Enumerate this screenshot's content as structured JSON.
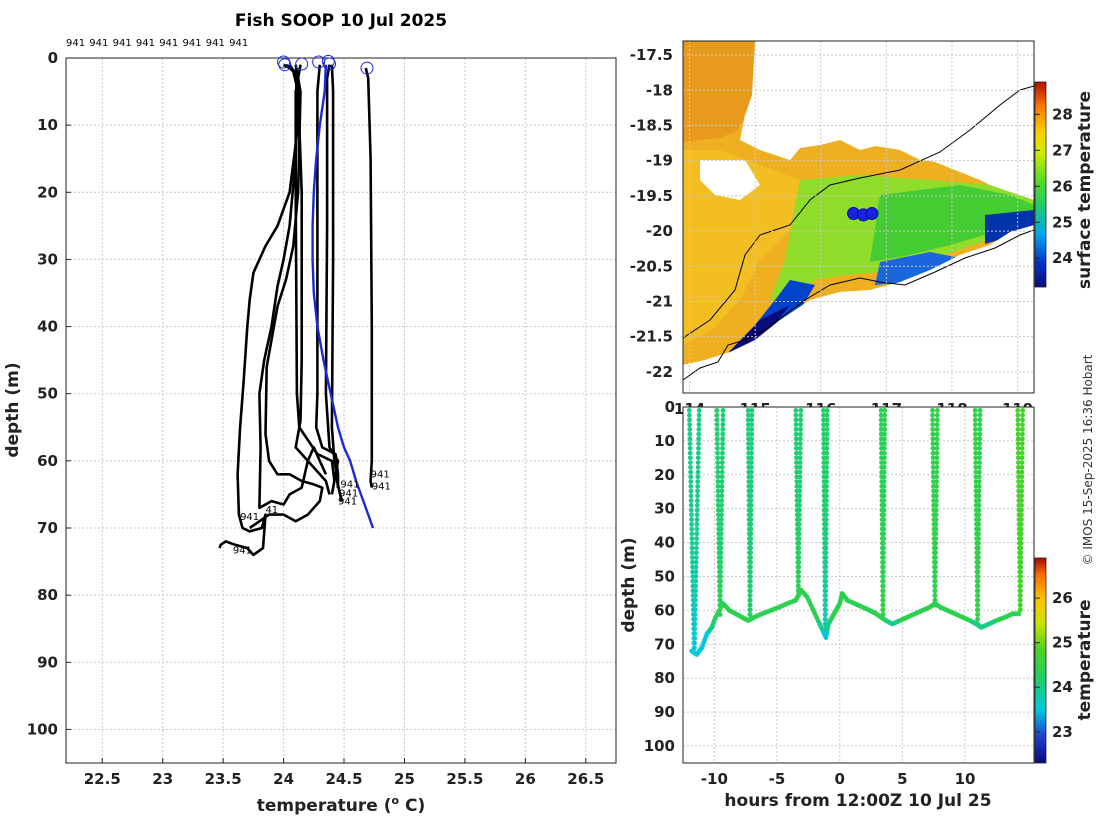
{
  "chart_data": [
    {
      "type": "line",
      "title": "Fish SOOP 10 Jul 2025",
      "xlabel": "temperature (",
      "xlabel_sup": "o",
      "xlabel_end": " C)",
      "ylabel": "depth (m)",
      "xlim": [
        22.2,
        26.75
      ],
      "ylim": [
        105,
        0
      ],
      "xticks": [
        "22.5",
        "23",
        "23.5",
        "24",
        "24.5",
        "25",
        "25.5",
        "26",
        "26.5"
      ],
      "yticks": [
        "0",
        "10",
        "20",
        "30",
        "40",
        "50",
        "60",
        "70",
        "80",
        "90",
        "100"
      ],
      "top_labels": [
        "941",
        "941",
        "941",
        "941",
        "941",
        "941",
        "941",
        "941"
      ],
      "profile_labels": [
        {
          "text": "941",
          "t": 24.72,
          "d": 62.5
        },
        {
          "text": "941",
          "t": 24.73,
          "d": 64.3
        },
        {
          "text": "941",
          "t": 24.47,
          "d": 64.0
        },
        {
          "text": "941",
          "t": 24.46,
          "d": 65.3
        },
        {
          "text": "941",
          "t": 24.45,
          "d": 66.5
        },
        {
          "text": "41",
          "t": 23.85,
          "d": 67.8
        },
        {
          "text": "941",
          "t": 23.64,
          "d": 68.8
        },
        {
          "text": "941",
          "t": 23.58,
          "d": 73.8
        }
      ],
      "start_markers": [
        {
          "t": 24.0,
          "d": 0.6
        },
        {
          "t": 24.01,
          "d": 1.0
        },
        {
          "t": 24.15,
          "d": 0.9
        },
        {
          "t": 24.29,
          "d": 0.6
        },
        {
          "t": 24.37,
          "d": 0.5
        },
        {
          "t": 24.38,
          "d": 0.9
        },
        {
          "t": 24.69,
          "d": 1.5
        }
      ],
      "series": [
        {
          "name": "profile-1",
          "color": "#000000",
          "points": [
            [
              24.02,
              1
            ],
            [
              24.08,
              2
            ],
            [
              24.12,
              5
            ],
            [
              24.15,
              20
            ],
            [
              24.15,
              45
            ],
            [
              24.14,
              54
            ],
            [
              24.1,
              58
            ],
            [
              24.2,
              60
            ],
            [
              24.35,
              63
            ],
            [
              24.38,
              65
            ]
          ]
        },
        {
          "name": "profile-2",
          "color": "#000000",
          "points": [
            [
              24.14,
              1
            ],
            [
              24.1,
              5
            ],
            [
              24.1,
              20
            ],
            [
              24.11,
              50
            ],
            [
              24.13,
              55
            ],
            [
              24.28,
              59
            ],
            [
              24.4,
              60
            ],
            [
              24.42,
              63
            ],
            [
              24.4,
              65
            ]
          ]
        },
        {
          "name": "profile-3",
          "color": "#000000",
          "points": [
            [
              24.3,
              1
            ],
            [
              24.28,
              5
            ],
            [
              24.28,
              30
            ],
            [
              24.28,
              50
            ],
            [
              24.27,
              55
            ],
            [
              24.32,
              58
            ],
            [
              24.43,
              59
            ],
            [
              24.45,
              62
            ],
            [
              24.45,
              64
            ]
          ]
        },
        {
          "name": "profile-4",
          "color": "#000000",
          "points": [
            [
              24.38,
              1
            ],
            [
              24.36,
              3
            ],
            [
              24.36,
              25
            ],
            [
              24.35,
              50
            ],
            [
              24.38,
              58
            ],
            [
              24.45,
              60
            ],
            [
              24.43,
              62
            ],
            [
              24.48,
              66
            ]
          ]
        },
        {
          "name": "profile-5",
          "color": "#000000",
          "points": [
            [
              24.4,
              1
            ],
            [
              24.41,
              5
            ],
            [
              24.41,
              30
            ],
            [
              24.4,
              55
            ],
            [
              24.42,
              60
            ],
            [
              24.44,
              62
            ],
            [
              24.45,
              64
            ]
          ]
        },
        {
          "name": "profile-6",
          "color": "#000000",
          "points": [
            [
              24.68,
              1.5
            ],
            [
              24.7,
              3
            ],
            [
              24.72,
              15
            ],
            [
              24.73,
              40
            ],
            [
              24.73,
              60
            ],
            [
              24.72,
              63
            ],
            [
              24.73,
              64
            ]
          ]
        },
        {
          "name": "profile-7",
          "color": "#000000",
          "points": [
            [
              24.0,
              1
            ],
            [
              24.1,
              2
            ],
            [
              24.12,
              10
            ],
            [
              24.05,
              20
            ],
            [
              23.95,
              25
            ],
            [
              23.85,
              28
            ],
            [
              23.75,
              32
            ],
            [
              23.72,
              36
            ],
            [
              23.7,
              40
            ],
            [
              23.67,
              48
            ],
            [
              23.64,
              55
            ],
            [
              23.62,
              62
            ],
            [
              23.63,
              68
            ],
            [
              23.66,
              70
            ],
            [
              23.72,
              70.5
            ],
            [
              23.82,
              70
            ],
            [
              23.85,
              68
            ],
            [
              23.83,
              73
            ],
            [
              23.75,
              74
            ],
            [
              23.7,
              73
            ],
            [
              23.6,
              72.5
            ],
            [
              23.52,
              72
            ],
            [
              23.48,
              72.5
            ],
            [
              23.47,
              73
            ]
          ]
        },
        {
          "name": "profile-8",
          "color": "#000000",
          "points": [
            [
              24.05,
              1
            ],
            [
              24.12,
              3
            ],
            [
              24.1,
              15
            ],
            [
              24.05,
              25
            ],
            [
              24.0,
              30
            ],
            [
              23.95,
              34
            ],
            [
              23.9,
              40
            ],
            [
              23.84,
              45
            ],
            [
              23.8,
              50
            ],
            [
              23.81,
              58
            ],
            [
              23.8,
              67
            ],
            [
              23.9,
              66
            ],
            [
              24.0,
              66.5
            ],
            [
              24.05,
              65
            ],
            [
              24.15,
              64
            ],
            [
              24.2,
              60
            ],
            [
              24.25,
              58
            ],
            [
              24.3,
              60
            ],
            [
              24.35,
              62
            ]
          ]
        },
        {
          "name": "profile-9",
          "color": "#000000",
          "points": [
            [
              24.1,
              1
            ],
            [
              24.14,
              5
            ],
            [
              24.12,
              20
            ],
            [
              24.08,
              28
            ],
            [
              24.02,
              33
            ],
            [
              23.95,
              37
            ],
            [
              23.9,
              42
            ],
            [
              23.86,
              46
            ],
            [
              23.85,
              56
            ],
            [
              23.88,
              60
            ],
            [
              23.95,
              62
            ],
            [
              24.05,
              62
            ],
            [
              24.15,
              63
            ],
            [
              24.25,
              63.5
            ],
            [
              24.32,
              64
            ],
            [
              24.3,
              66
            ],
            [
              24.2,
              68
            ],
            [
              24.1,
              69
            ],
            [
              24.0,
              68
            ],
            [
              23.88,
              68
            ],
            [
              23.8,
              69
            ],
            [
              23.72,
              70
            ]
          ]
        },
        {
          "name": "mean-profile",
          "color": "#1a2ad6",
          "points": [
            [
              24.35,
              1
            ],
            [
              24.34,
              5
            ],
            [
              24.3,
              10
            ],
            [
              24.27,
              15
            ],
            [
              24.25,
              20
            ],
            [
              24.24,
              25
            ],
            [
              24.24,
              30
            ],
            [
              24.25,
              35
            ],
            [
              24.28,
              40
            ],
            [
              24.33,
              45
            ],
            [
              24.39,
              50
            ],
            [
              24.45,
              55
            ],
            [
              24.5,
              58
            ],
            [
              24.55,
              60
            ],
            [
              24.6,
              63
            ],
            [
              24.66,
              66
            ],
            [
              24.74,
              70
            ]
          ]
        }
      ]
    },
    {
      "type": "heatmap",
      "ylim": [
        -22.3,
        -17.3
      ],
      "xlim": [
        113.9,
        119.25
      ],
      "yticks": [
        "-17.5",
        "-18",
        "-18.5",
        "-19",
        "-19.5",
        "-20",
        "-20.5",
        "-21",
        "-21.5",
        "-22"
      ],
      "xticks": [
        "114",
        "115",
        "116",
        "117",
        "118",
        "119"
      ],
      "colorbar_label": "surface temperature",
      "colorbar_range": [
        23.2,
        28.9
      ],
      "colorbar_ticks": [
        "28",
        "27",
        "26",
        "25",
        "24"
      ],
      "markers": [
        {
          "lon": 116.5,
          "lat": -19.75
        },
        {
          "lon": 116.65,
          "lat": -19.77
        },
        {
          "lon": 116.78,
          "lat": -19.75
        }
      ]
    },
    {
      "type": "scatter",
      "xlabel": "hours from 12:00Z 10 Jul 25",
      "ylabel": "depth (m)",
      "xlim": [
        -12.5,
        15.5
      ],
      "ylim": [
        105,
        0
      ],
      "xticks": [
        "-10",
        "-5",
        "0",
        "5",
        "10"
      ],
      "yticks": [
        "0",
        "10",
        "20",
        "30",
        "40",
        "50",
        "60",
        "70",
        "80",
        "90",
        "100"
      ],
      "colorbar_label": "temperature",
      "colorbar_range": [
        22.3,
        26.9
      ],
      "colorbar_ticks": [
        "26",
        "25",
        "24",
        "23"
      ],
      "profiles": [
        {
          "x0": -12.0,
          "x1": -11.2,
          "bottom": 73,
          "tbot": 23.45,
          "ttop": 24.0
        },
        {
          "x0": -9.8,
          "x1": -9.3,
          "bottom": 62,
          "tbot": 24.3,
          "ttop": 24.1
        },
        {
          "x0": -7.3,
          "x1": -7.0,
          "bottom": 63,
          "tbot": 24.2,
          "ttop": 24.05
        },
        {
          "x0": -3.5,
          "x1": -3.1,
          "bottom": 56,
          "tbot": 24.35,
          "ttop": 24.1
        },
        {
          "x0": -1.3,
          "x1": -1.0,
          "bottom": 68,
          "tbot": 23.6,
          "ttop": 24.15
        },
        {
          "x0": 3.3,
          "x1": 3.6,
          "bottom": 62,
          "tbot": 24.4,
          "ttop": 24.3
        },
        {
          "x0": 7.4,
          "x1": 7.8,
          "bottom": 59,
          "tbot": 24.4,
          "ttop": 24.4
        },
        {
          "x0": 10.8,
          "x1": 11.2,
          "bottom": 64,
          "tbot": 24.45,
          "ttop": 24.38
        },
        {
          "x0": 14.2,
          "x1": 14.6,
          "bottom": 61,
          "tbot": 24.7,
          "ttop": 24.7
        }
      ],
      "tow": [
        [
          -11.8,
          72
        ],
        [
          -11.4,
          73
        ],
        [
          -11,
          71
        ],
        [
          -10.6,
          67
        ],
        [
          -10.2,
          65
        ],
        [
          -9.9,
          62
        ],
        [
          -9.3,
          58
        ],
        [
          -8.8,
          60
        ],
        [
          -8.3,
          61
        ],
        [
          -7.8,
          62
        ],
        [
          -7.3,
          63
        ],
        [
          -6.8,
          62
        ],
        [
          -6.2,
          61
        ],
        [
          -5.5,
          60
        ],
        [
          -4.8,
          59
        ],
        [
          -4.2,
          58
        ],
        [
          -3.5,
          57
        ],
        [
          -3.1,
          54
        ],
        [
          -2.6,
          56
        ],
        [
          -2.1,
          60
        ],
        [
          -1.6,
          64
        ],
        [
          -1.1,
          68
        ],
        [
          -0.9,
          64
        ],
        [
          -0.6,
          62
        ],
        [
          -0.3,
          60
        ],
        [
          0,
          58
        ],
        [
          0.2,
          55
        ],
        [
          0.6,
          57
        ],
        [
          1.2,
          58
        ],
        [
          1.8,
          59
        ],
        [
          2.4,
          60
        ],
        [
          2.9,
          61
        ],
        [
          3.3,
          62
        ],
        [
          3.7,
          63
        ],
        [
          4.2,
          64
        ],
        [
          4.8,
          63
        ],
        [
          5.4,
          62
        ],
        [
          6.0,
          61
        ],
        [
          6.6,
          60
        ],
        [
          7.2,
          59
        ],
        [
          7.6,
          58
        ],
        [
          8.0,
          59
        ],
        [
          8.6,
          60
        ],
        [
          9.2,
          61
        ],
        [
          9.8,
          62
        ],
        [
          10.4,
          63
        ],
        [
          10.9,
          64
        ],
        [
          11.3,
          65
        ],
        [
          11.9,
          64
        ],
        [
          12.5,
          63
        ],
        [
          13.2,
          62
        ],
        [
          13.8,
          61
        ],
        [
          14.4,
          61
        ]
      ]
    }
  ],
  "credit": "© IMOS 15-Sep-2025 16:36 Hobart"
}
